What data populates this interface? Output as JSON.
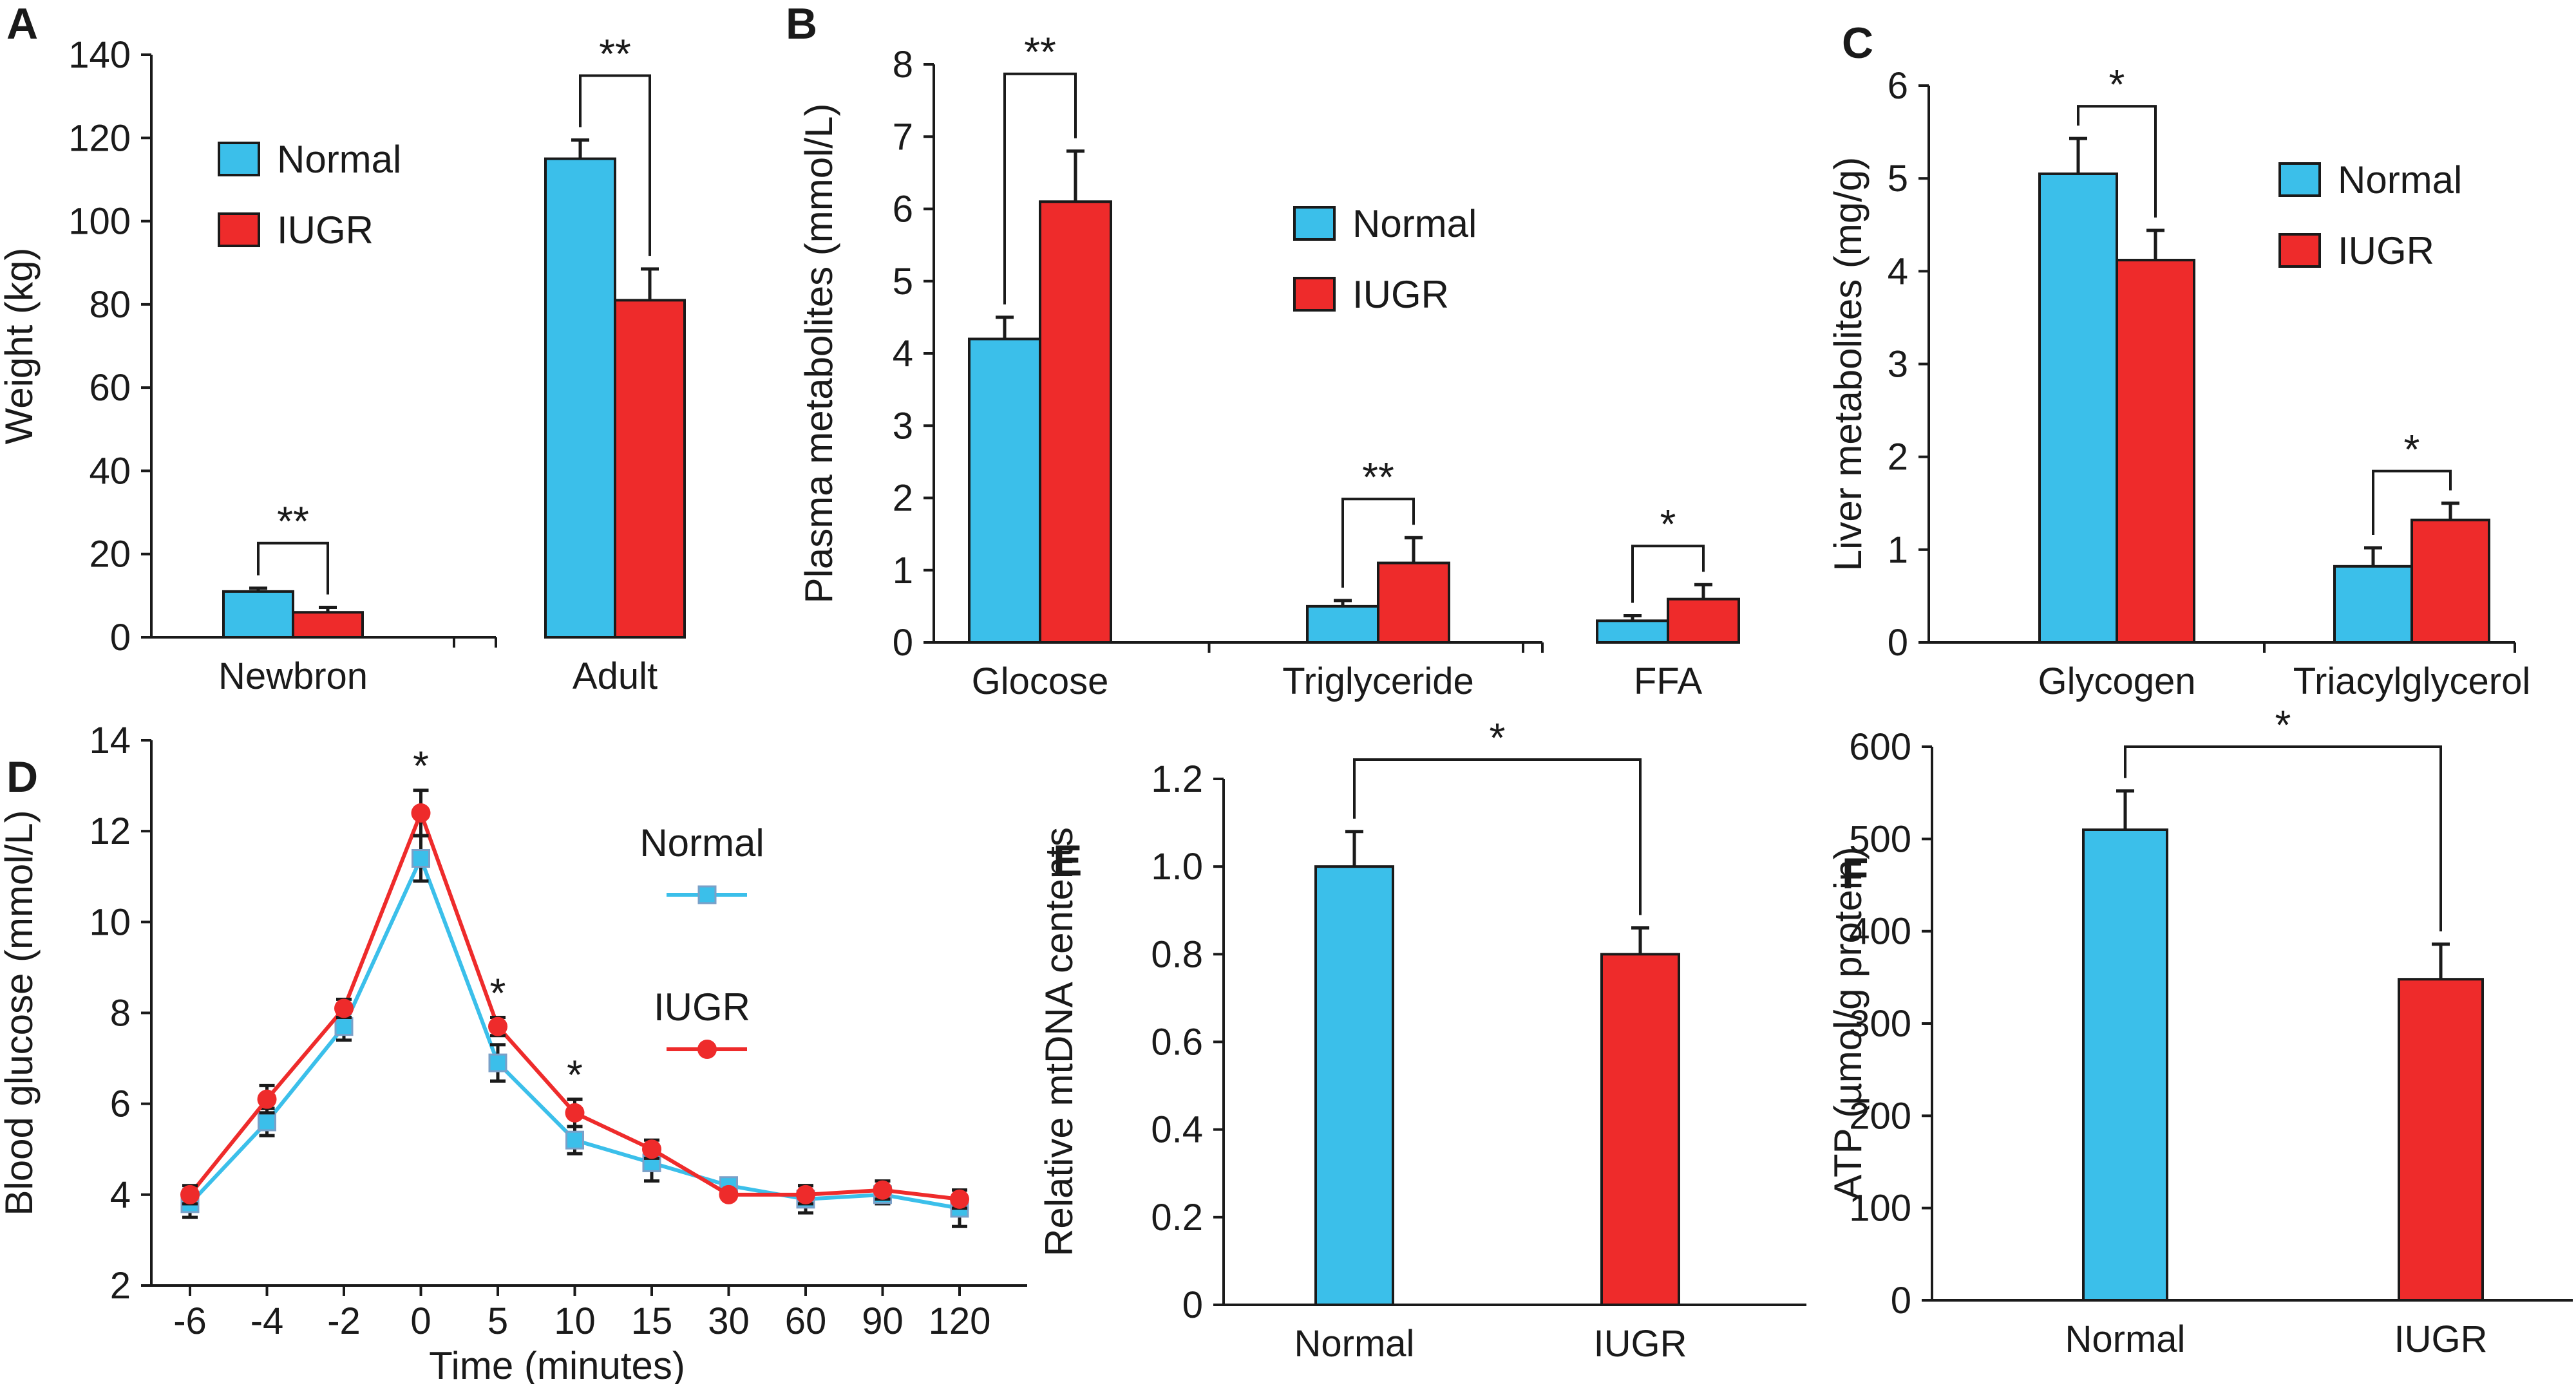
{
  "colors": {
    "Normal": "#3bbfea",
    "IUGR": "#ee2b2b",
    "axis": "#1a1a1a"
  },
  "chart_data": [
    {
      "panel": "A",
      "type": "bar",
      "title": "",
      "xlabel": "",
      "ylabel": "Weight (kg)",
      "ylim": [
        0,
        140
      ],
      "yticks": [
        0,
        20,
        40,
        60,
        80,
        100,
        120,
        140
      ],
      "categories": [
        "Newbron",
        "Adult"
      ],
      "series": [
        {
          "name": "Normal",
          "values": [
            11,
            115
          ],
          "errors": [
            0.8,
            4.5
          ]
        },
        {
          "name": "IUGR",
          "values": [
            6,
            81
          ],
          "errors": [
            1.2,
            7.5
          ]
        }
      ],
      "significance": [
        "**",
        "**"
      ],
      "legend": "top-left"
    },
    {
      "panel": "B",
      "type": "bar",
      "title": "",
      "xlabel": "",
      "ylabel": "Plasma metabolites (mmol/L)",
      "ylim": [
        0,
        8
      ],
      "yticks": [
        0,
        1,
        2,
        3,
        4,
        5,
        6,
        7,
        8
      ],
      "categories": [
        "Glocose",
        "Triglyceride",
        "FFA"
      ],
      "series": [
        {
          "name": "Normal",
          "values": [
            4.2,
            0.5,
            0.3
          ],
          "errors": [
            0.3,
            0.08,
            0.07
          ]
        },
        {
          "name": "IUGR",
          "values": [
            6.1,
            1.1,
            0.6
          ],
          "errors": [
            0.7,
            0.35,
            0.2
          ]
        }
      ],
      "significance": [
        "**",
        "**",
        "*"
      ],
      "legend": "top-right"
    },
    {
      "panel": "C",
      "type": "bar",
      "title": "",
      "xlabel": "",
      "ylabel": "Liver metabolites (mg/g)",
      "ylim": [
        0,
        6
      ],
      "yticks": [
        0,
        1,
        2,
        3,
        4,
        5,
        6
      ],
      "categories": [
        "Glycogen",
        "Triacylglycerol"
      ],
      "series": [
        {
          "name": "Normal",
          "values": [
            5.05,
            0.82
          ],
          "errors": [
            0.38,
            0.2
          ]
        },
        {
          "name": "IUGR",
          "values": [
            4.12,
            1.32
          ],
          "errors": [
            0.32,
            0.18
          ]
        }
      ],
      "significance": [
        "*",
        "*"
      ],
      "legend": "top-right"
    },
    {
      "panel": "D",
      "type": "line",
      "title": "",
      "xlabel": "Time (minutes)",
      "ylabel": "Blood glucose (mmol/L)",
      "ylim": [
        2,
        14
      ],
      "yticks": [
        2,
        4,
        6,
        8,
        10,
        12,
        14
      ],
      "categories": [
        "-6",
        "-4",
        "-2",
        "0",
        "5",
        "10",
        "15",
        "30",
        "60",
        "90",
        "120"
      ],
      "series": [
        {
          "name": "Normal",
          "marker": "square",
          "values": [
            3.8,
            5.6,
            7.7,
            11.4,
            6.9,
            5.2,
            4.7,
            4.2,
            3.9,
            4.0,
            3.7
          ],
          "errors": [
            0.3,
            0.3,
            0.3,
            0.5,
            0.4,
            0.3,
            0.4,
            0.15,
            0.3,
            0.2,
            0.4
          ]
        },
        {
          "name": "IUGR",
          "marker": "circle",
          "values": [
            4.0,
            6.1,
            8.1,
            12.4,
            7.7,
            5.8,
            5.0,
            4.0,
            4.0,
            4.1,
            3.9
          ],
          "errors": [
            0.2,
            0.3,
            0.2,
            0.5,
            0.2,
            0.3,
            0.2,
            0.1,
            0.2,
            0.2,
            0.2
          ]
        }
      ],
      "significance_points": [
        "0",
        "5",
        "10"
      ],
      "significance": [
        "*",
        "*",
        "*"
      ],
      "legend": "right"
    },
    {
      "panel": "E",
      "type": "bar",
      "title": "",
      "xlabel": "",
      "ylabel": "Relative mtDNA centents",
      "ylim": [
        0,
        1.2
      ],
      "yticks": [
        "0",
        "0.2",
        "0.4",
        "0.6",
        "0.8",
        "1.0",
        "1.2"
      ],
      "categories": [
        "Normal",
        "IUGR"
      ],
      "values": [
        1.0,
        0.8
      ],
      "errors": [
        0.08,
        0.06
      ],
      "significance": [
        "*"
      ]
    },
    {
      "panel": "F",
      "type": "bar",
      "title": "",
      "xlabel": "",
      "ylabel": "ATP (µmol/g protein)",
      "ylim": [
        0,
        600
      ],
      "yticks": [
        "0",
        "100",
        "200",
        "300",
        "400",
        "500",
        "600"
      ],
      "categories": [
        "Normal",
        "IUGR"
      ],
      "values": [
        510,
        348
      ],
      "errors": [
        42,
        38
      ],
      "significance": [
        "*"
      ]
    }
  ]
}
